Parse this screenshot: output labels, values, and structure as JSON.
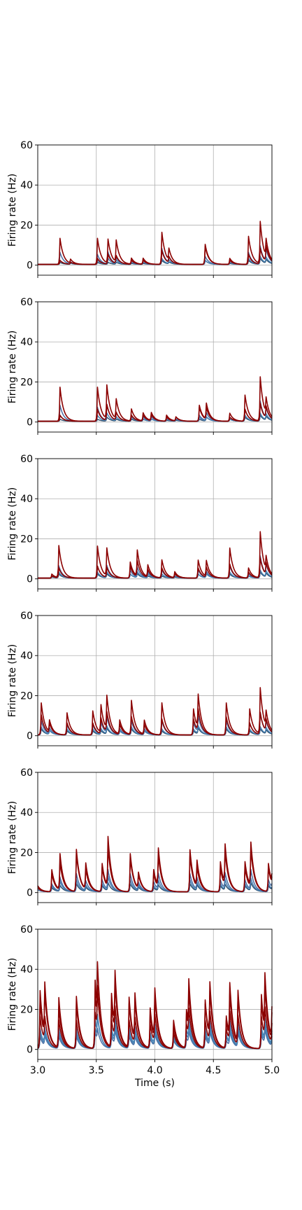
{
  "chart_data": [
    {
      "type": "line",
      "panel": 1,
      "ylabel": "Firing rate (Hz)",
      "xlabel": "",
      "xlim": [
        3.0,
        5.0
      ],
      "ylim": [
        -5,
        60
      ],
      "yticks": [
        0,
        20,
        40,
        60
      ],
      "ytick_labels": [
        "0",
        "20",
        "40",
        "60"
      ],
      "xticks": [
        3.0,
        3.5,
        4.0,
        4.5,
        5.0
      ],
      "xtick_labels": [],
      "grid": true,
      "series_colors": [
        "#8b0000",
        "#8b0000",
        "#4a6fa5",
        "#4682b4",
        "#2f4f6f"
      ],
      "peaks": [
        {
          "t": 3.19,
          "a": [
            13,
            2,
            6,
            2,
            1
          ]
        },
        {
          "t": 3.28,
          "a": [
            2,
            1,
            1,
            0.5,
            0.5
          ]
        },
        {
          "t": 3.51,
          "a": [
            13,
            3,
            5,
            2,
            1
          ]
        },
        {
          "t": 3.6,
          "a": [
            12,
            5,
            6,
            3,
            1
          ]
        },
        {
          "t": 3.67,
          "a": [
            11,
            4,
            3,
            2,
            1
          ]
        },
        {
          "t": 3.8,
          "a": [
            3,
            2,
            1,
            1,
            0.5
          ]
        },
        {
          "t": 3.9,
          "a": [
            3,
            2,
            1,
            1,
            0.5
          ]
        },
        {
          "t": 4.06,
          "a": [
            16,
            7,
            8,
            3,
            2
          ]
        },
        {
          "t": 4.12,
          "a": [
            6,
            3,
            3,
            2,
            1
          ]
        },
        {
          "t": 4.43,
          "a": [
            10,
            9,
            4,
            2,
            2
          ]
        },
        {
          "t": 4.64,
          "a": [
            3,
            2,
            1,
            1,
            0.5
          ]
        },
        {
          "t": 4.8,
          "a": [
            14,
            5,
            6,
            3,
            2
          ]
        },
        {
          "t": 4.9,
          "a": [
            21,
            8,
            9,
            4,
            3
          ]
        },
        {
          "t": 4.95,
          "a": [
            9,
            8,
            6,
            3,
            2
          ]
        }
      ]
    },
    {
      "type": "line",
      "panel": 2,
      "ylabel": "Firing rate (Hz)",
      "xlabel": "",
      "xlim": [
        3.0,
        5.0
      ],
      "ylim": [
        -5,
        60
      ],
      "yticks": [
        0,
        20,
        40,
        60
      ],
      "ytick_labels": [
        "0",
        "20",
        "40",
        "60"
      ],
      "xticks": [
        3.0,
        3.5,
        4.0,
        4.5,
        5.0
      ],
      "xtick_labels": [],
      "grid": true,
      "series_colors": [
        "#8b0000",
        "#8b0000",
        "#4a6fa5",
        "#4682b4",
        "#2f4f6f"
      ],
      "peaks": [
        {
          "t": 3.19,
          "a": [
            17,
            3,
            8,
            3,
            1
          ]
        },
        {
          "t": 3.51,
          "a": [
            17,
            6,
            7,
            3,
            1
          ]
        },
        {
          "t": 3.59,
          "a": [
            17,
            8,
            8,
            4,
            2
          ]
        },
        {
          "t": 3.67,
          "a": [
            10,
            4,
            4,
            2,
            1
          ]
        },
        {
          "t": 3.8,
          "a": [
            6,
            3,
            3,
            2,
            1
          ]
        },
        {
          "t": 3.9,
          "a": [
            4,
            3,
            2,
            1,
            1
          ]
        },
        {
          "t": 3.97,
          "a": [
            4,
            3,
            2,
            1,
            1
          ]
        },
        {
          "t": 4.1,
          "a": [
            3,
            2,
            1,
            1,
            0.5
          ]
        },
        {
          "t": 4.18,
          "a": [
            2,
            2,
            1,
            1,
            0.5
          ]
        },
        {
          "t": 4.38,
          "a": [
            8,
            7,
            3,
            2,
            1
          ]
        },
        {
          "t": 4.44,
          "a": [
            8,
            6,
            4,
            2,
            2
          ]
        },
        {
          "t": 4.64,
          "a": [
            4,
            2,
            2,
            1,
            1
          ]
        },
        {
          "t": 4.77,
          "a": [
            13,
            6,
            6,
            3,
            2
          ]
        },
        {
          "t": 4.9,
          "a": [
            22,
            9,
            10,
            4,
            3
          ]
        },
        {
          "t": 4.95,
          "a": [
            8,
            6,
            5,
            3,
            2
          ]
        }
      ]
    },
    {
      "type": "line",
      "panel": 3,
      "ylabel": "Firing rate (Hz)",
      "xlabel": "",
      "xlim": [
        3.0,
        5.0
      ],
      "ylim": [
        -5,
        60
      ],
      "yticks": [
        0,
        20,
        40,
        60
      ],
      "ytick_labels": [
        "0",
        "20",
        "40",
        "60"
      ],
      "xticks": [
        3.0,
        3.5,
        4.0,
        4.5,
        5.0
      ],
      "xtick_labels": [],
      "grid": true,
      "series_colors": [
        "#8b0000",
        "#8b0000",
        "#4a6fa5",
        "#4682b4",
        "#2f4f6f"
      ],
      "peaks": [
        {
          "t": 3.12,
          "a": [
            2,
            1,
            1,
            0.5,
            0.5
          ]
        },
        {
          "t": 3.18,
          "a": [
            16,
            5,
            6,
            3,
            2
          ]
        },
        {
          "t": 3.51,
          "a": [
            16,
            6,
            6,
            3,
            2
          ]
        },
        {
          "t": 3.59,
          "a": [
            14,
            5,
            6,
            3,
            2
          ]
        },
        {
          "t": 3.79,
          "a": [
            8,
            6,
            4,
            2,
            2
          ]
        },
        {
          "t": 3.85,
          "a": [
            13,
            8,
            5,
            3,
            2
          ]
        },
        {
          "t": 3.94,
          "a": [
            6,
            4,
            3,
            2,
            1
          ]
        },
        {
          "t": 4.06,
          "a": [
            9,
            5,
            4,
            2,
            1
          ]
        },
        {
          "t": 4.17,
          "a": [
            3,
            2,
            1,
            1,
            0.5
          ]
        },
        {
          "t": 4.37,
          "a": [
            9,
            5,
            4,
            2,
            2
          ]
        },
        {
          "t": 4.44,
          "a": [
            8,
            5,
            3,
            2,
            2
          ]
        },
        {
          "t": 4.64,
          "a": [
            15,
            7,
            6,
            3,
            2
          ]
        },
        {
          "t": 4.8,
          "a": [
            5,
            3,
            2,
            1,
            1
          ]
        },
        {
          "t": 4.9,
          "a": [
            23,
            10,
            11,
            4,
            3
          ]
        },
        {
          "t": 4.95,
          "a": [
            7,
            6,
            5,
            3,
            2
          ]
        }
      ]
    },
    {
      "type": "line",
      "panel": 4,
      "ylabel": "Firing rate (Hz)",
      "xlabel": "",
      "xlim": [
        3.0,
        5.0
      ],
      "ylim": [
        -5,
        60
      ],
      "yticks": [
        0,
        20,
        40,
        60
      ],
      "ytick_labels": [
        "0",
        "20",
        "40",
        "60"
      ],
      "xticks": [
        3.0,
        3.5,
        4.0,
        4.5,
        5.0
      ],
      "xtick_labels": [],
      "grid": true,
      "series_colors": [
        "#8b0000",
        "#8b0000",
        "#4a6fa5",
        "#4682b4",
        "#2f4f6f"
      ],
      "peaks": [
        {
          "t": 3.03,
          "a": [
            16,
            10,
            7,
            4,
            3
          ]
        },
        {
          "t": 3.1,
          "a": [
            6,
            5,
            3,
            2,
            2
          ]
        },
        {
          "t": 3.25,
          "a": [
            11,
            6,
            5,
            3,
            2
          ]
        },
        {
          "t": 3.47,
          "a": [
            12,
            6,
            5,
            3,
            2
          ]
        },
        {
          "t": 3.54,
          "a": [
            14,
            8,
            6,
            3,
            2
          ]
        },
        {
          "t": 3.59,
          "a": [
            17,
            10,
            8,
            4,
            3
          ]
        },
        {
          "t": 3.7,
          "a": [
            7,
            5,
            3,
            2,
            2
          ]
        },
        {
          "t": 3.8,
          "a": [
            17,
            9,
            7,
            4,
            3
          ]
        },
        {
          "t": 3.91,
          "a": [
            7,
            5,
            3,
            2,
            2
          ]
        },
        {
          "t": 4.06,
          "a": [
            16,
            8,
            7,
            3,
            2
          ]
        },
        {
          "t": 4.33,
          "a": [
            13,
            8,
            6,
            3,
            2
          ]
        },
        {
          "t": 4.37,
          "a": [
            17,
            11,
            8,
            4,
            3
          ]
        },
        {
          "t": 4.61,
          "a": [
            16,
            9,
            7,
            4,
            3
          ]
        },
        {
          "t": 4.81,
          "a": [
            13,
            6,
            6,
            3,
            2
          ]
        },
        {
          "t": 4.9,
          "a": [
            23,
            11,
            11,
            4,
            3
          ]
        },
        {
          "t": 4.95,
          "a": [
            8,
            6,
            5,
            3,
            2
          ]
        }
      ]
    },
    {
      "type": "line",
      "panel": 5,
      "ylabel": "Firing rate (Hz)",
      "xlabel": "",
      "xlim": [
        3.0,
        5.0
      ],
      "ylim": [
        -5,
        60
      ],
      "yticks": [
        0,
        20,
        40,
        60
      ],
      "ytick_labels": [
        "0",
        "20",
        "40",
        "60"
      ],
      "xticks": [
        3.0,
        3.5,
        4.0,
        4.5,
        5.0
      ],
      "xtick_labels": [],
      "grid": true,
      "series_colors": [
        "#8b0000",
        "#8b0000",
        "#4a6fa5",
        "#4682b4",
        "#2f4f6f"
      ],
      "peaks": [
        {
          "t": 3.0,
          "a": [
            3,
            2,
            1,
            1,
            1
          ]
        },
        {
          "t": 3.12,
          "a": [
            11,
            9,
            4,
            3,
            2
          ]
        },
        {
          "t": 3.19,
          "a": [
            18,
            14,
            7,
            5,
            3
          ]
        },
        {
          "t": 3.33,
          "a": [
            21,
            19,
            9,
            6,
            4
          ]
        },
        {
          "t": 3.41,
          "a": [
            13,
            10,
            5,
            3,
            2
          ]
        },
        {
          "t": 3.55,
          "a": [
            14,
            12,
            6,
            4,
            3
          ]
        },
        {
          "t": 3.6,
          "a": [
            25,
            20,
            10,
            7,
            4
          ]
        },
        {
          "t": 3.79,
          "a": [
            19,
            17,
            9,
            6,
            4
          ]
        },
        {
          "t": 3.86,
          "a": [
            8,
            7,
            4,
            3,
            2
          ]
        },
        {
          "t": 3.99,
          "a": [
            11,
            9,
            5,
            3,
            2
          ]
        },
        {
          "t": 4.03,
          "a": [
            19,
            16,
            8,
            5,
            3
          ]
        },
        {
          "t": 4.3,
          "a": [
            21,
            18,
            9,
            6,
            4
          ]
        },
        {
          "t": 4.36,
          "a": [
            13,
            10,
            6,
            4,
            3
          ]
        },
        {
          "t": 4.56,
          "a": [
            15,
            12,
            6,
            4,
            3
          ]
        },
        {
          "t": 4.6,
          "a": [
            20,
            17,
            8,
            5,
            3
          ]
        },
        {
          "t": 4.77,
          "a": [
            15,
            12,
            6,
            4,
            3
          ]
        },
        {
          "t": 4.82,
          "a": [
            22,
            19,
            10,
            6,
            4
          ]
        },
        {
          "t": 4.97,
          "a": [
            14,
            12,
            6,
            4,
            3
          ]
        },
        {
          "t": 5.0,
          "a": [
            4,
            3,
            2,
            1,
            1
          ]
        }
      ]
    },
    {
      "type": "line",
      "panel": 6,
      "ylabel": "Firing rate (Hz)",
      "xlabel": "Time (s)",
      "xlim": [
        3.0,
        5.0
      ],
      "ylim": [
        -5,
        60
      ],
      "yticks": [
        0,
        20,
        40,
        60
      ],
      "ytick_labels": [
        "0",
        "20",
        "40",
        "60"
      ],
      "xticks": [
        3.0,
        3.5,
        4.0,
        4.5,
        5.0
      ],
      "xtick_labels": [
        "3.0",
        "3.5",
        "4.0",
        "4.5",
        "5.0"
      ],
      "grid": true,
      "series_colors": [
        "#8b0000",
        "#8b0000",
        "#8b0000",
        "#4682b4",
        "#4682b4",
        "#4a6fa5"
      ],
      "peaks": [
        {
          "t": 3.02,
          "a": [
            24,
            29,
            16,
            10,
            8,
            6
          ]
        },
        {
          "t": 3.06,
          "a": [
            27,
            21,
            12,
            8,
            6,
            5
          ]
        },
        {
          "t": 3.18,
          "a": [
            20,
            25,
            14,
            10,
            8,
            6
          ]
        },
        {
          "t": 3.33,
          "a": [
            26,
            22,
            14,
            10,
            8,
            6
          ]
        },
        {
          "t": 3.49,
          "a": [
            34,
            26,
            18,
            14,
            10,
            8
          ]
        },
        {
          "t": 3.51,
          "a": [
            14,
            30,
            20,
            9,
            12,
            6
          ]
        },
        {
          "t": 3.63,
          "a": [
            27,
            21,
            14,
            10,
            8,
            6
          ]
        },
        {
          "t": 3.66,
          "a": [
            29,
            25,
            16,
            12,
            9,
            7
          ]
        },
        {
          "t": 3.78,
          "a": [
            25,
            22,
            14,
            10,
            8,
            6
          ]
        },
        {
          "t": 3.83,
          "a": [
            23,
            20,
            13,
            9,
            7,
            5
          ]
        },
        {
          "t": 3.96,
          "a": [
            20,
            17,
            12,
            8,
            6,
            5
          ]
        },
        {
          "t": 4.0,
          "a": [
            25,
            21,
            14,
            10,
            8,
            6
          ]
        },
        {
          "t": 4.16,
          "a": [
            14,
            11,
            8,
            6,
            5,
            4
          ]
        },
        {
          "t": 4.27,
          "a": [
            19,
            17,
            12,
            9,
            7,
            5
          ]
        },
        {
          "t": 4.29,
          "a": [
            25,
            20,
            14,
            10,
            8,
            6
          ]
        },
        {
          "t": 4.43,
          "a": [
            24,
            22,
            14,
            10,
            8,
            6
          ]
        },
        {
          "t": 4.47,
          "a": [
            27,
            23,
            15,
            11,
            9,
            7
          ]
        },
        {
          "t": 4.61,
          "a": [
            16,
            14,
            10,
            7,
            6,
            4
          ]
        },
        {
          "t": 4.64,
          "a": [
            27,
            22,
            15,
            11,
            9,
            7
          ]
        },
        {
          "t": 4.71,
          "a": [
            26,
            24,
            15,
            11,
            9,
            7
          ]
        },
        {
          "t": 4.91,
          "a": [
            27,
            24,
            16,
            11,
            9,
            7
          ]
        },
        {
          "t": 4.94,
          "a": [
            28,
            22,
            15,
            11,
            9,
            7
          ]
        },
        {
          "t": 5.0,
          "a": [
            16,
            14,
            10,
            7,
            6,
            5
          ]
        }
      ]
    }
  ]
}
